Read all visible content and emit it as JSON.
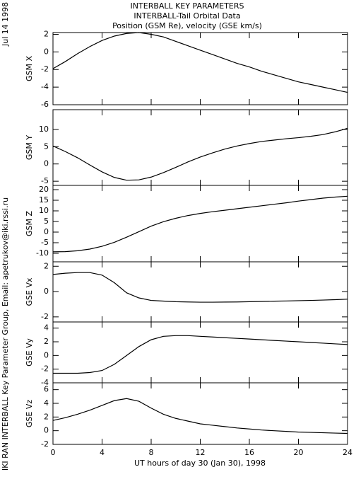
{
  "titles": [
    "INTERBALL KEY PARAMETERS",
    "INTERBALL-Tail Orbital Data",
    "Position (GSM Re), velocity (GSE km/s)"
  ],
  "date_stamp": "Jul 14 1998",
  "credit": "IKI RAN INTERBALL Key Parameter Group, Email: apetrukov@iki.rssi.ru",
  "x_axis": {
    "label": "UT hours of day  30 (Jan 30), 1998",
    "xlim": [
      0,
      24
    ],
    "xticks": [
      0,
      4,
      8,
      12,
      16,
      20,
      24
    ],
    "x": [
      0,
      1,
      2,
      3,
      4,
      5,
      6,
      7,
      8,
      9,
      10,
      11,
      12,
      13,
      14,
      15,
      16,
      17,
      18,
      19,
      20,
      21,
      22,
      23,
      24
    ]
  },
  "chart_data": [
    {
      "type": "line",
      "ylabel": "GSM X",
      "ylim": [
        -6,
        2.2
      ],
      "yticks": [
        2,
        0,
        -2,
        -4,
        -6
      ],
      "values": [
        -1.9,
        -1.1,
        -0.2,
        0.6,
        1.3,
        1.8,
        2.1,
        2.2,
        2.0,
        1.7,
        1.2,
        0.7,
        0.2,
        -0.3,
        -0.8,
        -1.3,
        -1.7,
        -2.2,
        -2.6,
        -3.0,
        -3.4,
        -3.7,
        -4.0,
        -4.3,
        -4.6
      ]
    },
    {
      "type": "line",
      "ylabel": "GSM Y",
      "ylim": [
        -6.2,
        15.7
      ],
      "yticks": [
        10,
        5,
        0,
        -5
      ],
      "values": [
        5.2,
        3.6,
        1.8,
        -0.3,
        -2.3,
        -3.9,
        -4.7,
        -4.6,
        -3.8,
        -2.5,
        -1.0,
        0.6,
        2.0,
        3.2,
        4.3,
        5.2,
        5.9,
        6.5,
        6.9,
        7.3,
        7.6,
        8.0,
        8.5,
        9.3,
        10.3
      ]
    },
    {
      "type": "line",
      "ylabel": "GSM Z",
      "ylim": [
        -14,
        22
      ],
      "yticks": [
        20,
        15,
        10,
        5,
        0,
        -5,
        -10
      ],
      "values": [
        -9.3,
        -9.2,
        -8.8,
        -8.0,
        -6.7,
        -4.8,
        -2.4,
        0.2,
        2.8,
        4.9,
        6.5,
        7.8,
        8.8,
        9.6,
        10.3,
        11.0,
        11.7,
        12.4,
        13.1,
        13.8,
        14.6,
        15.3,
        16.0,
        16.5,
        16.9
      ]
    },
    {
      "type": "line",
      "ylabel": "GSE Vx",
      "ylim": [
        -2.4,
        2.35
      ],
      "yticks": [
        2,
        0,
        -2
      ],
      "values": [
        1.35,
        1.45,
        1.5,
        1.5,
        1.3,
        0.7,
        -0.1,
        -0.5,
        -0.7,
        -0.75,
        -0.8,
        -0.82,
        -0.84,
        -0.84,
        -0.83,
        -0.82,
        -0.8,
        -0.78,
        -0.76,
        -0.74,
        -0.72,
        -0.7,
        -0.67,
        -0.64,
        -0.6
      ]
    },
    {
      "type": "line",
      "ylabel": "GSE Vy",
      "ylim": [
        -4,
        4.9
      ],
      "yticks": [
        4,
        2,
        0,
        -2,
        -4
      ],
      "values": [
        -2.6,
        -2.6,
        -2.6,
        -2.5,
        -2.2,
        -1.3,
        0.0,
        1.3,
        2.3,
        2.8,
        2.9,
        2.9,
        2.8,
        2.7,
        2.6,
        2.5,
        2.4,
        2.3,
        2.2,
        2.1,
        2.0,
        1.9,
        1.8,
        1.7,
        1.6
      ]
    },
    {
      "type": "line",
      "ylabel": "GSE Vz",
      "ylim": [
        -2,
        7
      ],
      "yticks": [
        6,
        4,
        2,
        0,
        -2
      ],
      "values": [
        1.5,
        1.9,
        2.4,
        3.0,
        3.7,
        4.4,
        4.7,
        4.3,
        3.3,
        2.4,
        1.8,
        1.4,
        1.0,
        0.8,
        0.6,
        0.4,
        0.25,
        0.1,
        0.0,
        -0.1,
        -0.2,
        -0.25,
        -0.3,
        -0.35,
        -0.4
      ]
    }
  ]
}
